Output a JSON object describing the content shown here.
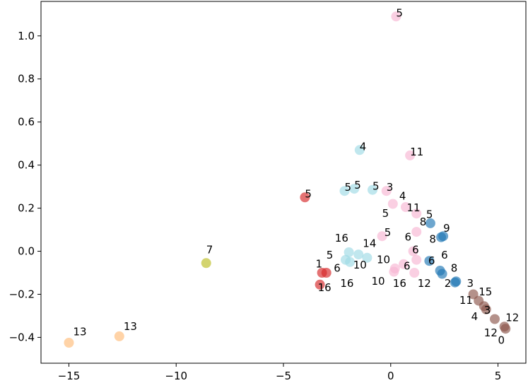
{
  "chart_data": {
    "type": "scatter",
    "title": "",
    "xlabel": "",
    "ylabel": "",
    "xlim": [
      -16.3,
      6.3
    ],
    "ylim": [
      -0.52,
      1.16
    ],
    "x_ticks": [
      -15,
      -10,
      -5,
      0,
      5
    ],
    "x_tick_labels": [
      "−15",
      "−10",
      "−5",
      "0",
      "5"
    ],
    "y_ticks": [
      -0.4,
      -0.2,
      0.0,
      0.2,
      0.4,
      0.6,
      0.8,
      1.0
    ],
    "y_tick_labels": [
      "−0.4",
      "−0.2",
      "0.0",
      "0.2",
      "0.4",
      "0.6",
      "0.8",
      "1.0"
    ],
    "grid": false,
    "legend": false,
    "points": [
      {
        "x": 0.25,
        "y": 1.09,
        "label": "5",
        "color": "#f7b6d2"
      },
      {
        "x": 0.9,
        "y": 0.445,
        "label": "11",
        "color": "#f7b6d2"
      },
      {
        "x": -0.2,
        "y": 0.28,
        "label": "3",
        "color": "#f7b6d2"
      },
      {
        "x": 0.1,
        "y": 0.22,
        "label": "4",
        "color": "#f7b6d2"
      },
      {
        "x": 0.7,
        "y": 0.205,
        "label": "11",
        "color": "#f7b6d2"
      },
      {
        "x": 1.2,
        "y": 0.175,
        "label": "5",
        "color": "#f7b6d2"
      },
      {
        "x": -0.4,
        "y": 0.07,
        "label": "5",
        "color": "#f7b6d2"
      },
      {
        "x": 1.2,
        "y": 0.09,
        "label": "6",
        "color": "#f7b6d2"
      },
      {
        "x": 1.05,
        "y": 0.0,
        "label": "6",
        "color": "#f7b6d2"
      },
      {
        "x": 1.2,
        "y": -0.04,
        "label": "6",
        "color": "#f7b6d2"
      },
      {
        "x": 0.6,
        "y": -0.06,
        "label": "6",
        "color": "#f7b6d2"
      },
      {
        "x": 0.2,
        "y": -0.08,
        "label": "10",
        "color": "#f7b6d2"
      },
      {
        "x": 0.15,
        "y": -0.095,
        "label": "10",
        "color": "#f7b6d2"
      },
      {
        "x": 1.1,
        "y": -0.1,
        "label": "16",
        "color": "#f7b6d2"
      },
      {
        "x": -1.45,
        "y": 0.47,
        "label": "4",
        "color": "#9edae5"
      },
      {
        "x": -2.15,
        "y": 0.28,
        "label": "5",
        "color": "#9edae5"
      },
      {
        "x": -1.7,
        "y": 0.29,
        "label": "5",
        "color": "#9edae5"
      },
      {
        "x": -0.85,
        "y": 0.285,
        "label": "5",
        "color": "#9edae5"
      },
      {
        "x": -1.95,
        "y": -0.005,
        "label": "16",
        "color": "#9edae5"
      },
      {
        "x": -1.5,
        "y": -0.015,
        "label": "14",
        "color": "#9edae5"
      },
      {
        "x": -1.1,
        "y": -0.03,
        "label": "14",
        "color": "#9edae5"
      },
      {
        "x": -2.1,
        "y": -0.04,
        "label": "16",
        "color": "#9edae5"
      },
      {
        "x": -1.9,
        "y": -0.05,
        "label": "10",
        "color": "#9edae5"
      },
      {
        "x": -4.0,
        "y": 0.25,
        "label": "5",
        "color": "#d62728"
      },
      {
        "x": -3.0,
        "y": -0.1,
        "label": "5",
        "color": "#d62728"
      },
      {
        "x": -3.2,
        "y": -0.1,
        "label": "1",
        "color": "#d62728"
      },
      {
        "x": -3.3,
        "y": -0.155,
        "label": "16",
        "color": "#d62728"
      },
      {
        "x": 1.85,
        "y": 0.13,
        "label": "8",
        "color": "#1f77b4"
      },
      {
        "x": 2.45,
        "y": 0.07,
        "label": "9",
        "color": "#1f77b4"
      },
      {
        "x": 2.35,
        "y": 0.065,
        "label": "8",
        "color": "#1f77b4"
      },
      {
        "x": 1.8,
        "y": -0.045,
        "label": "6",
        "color": "#1f77b4"
      },
      {
        "x": 2.3,
        "y": -0.09,
        "label": "8",
        "color": "#1f77b4"
      },
      {
        "x": 2.4,
        "y": -0.105,
        "label": "2",
        "color": "#1f77b4"
      },
      {
        "x": 3.05,
        "y": -0.14,
        "label": "3",
        "color": "#1f77b4"
      },
      {
        "x": 3.0,
        "y": -0.145,
        "label": "2",
        "color": "#1f77b4"
      },
      {
        "x": -8.6,
        "y": -0.055,
        "label": "7",
        "color": "#bcbd22"
      },
      {
        "x": -15.0,
        "y": -0.425,
        "label": "13",
        "color": "#ffbb78"
      },
      {
        "x": -12.65,
        "y": -0.395,
        "label": "13",
        "color": "#ffbb78"
      },
      {
        "x": 3.85,
        "y": -0.2,
        "label": "15",
        "color": "#8c564b"
      },
      {
        "x": 4.1,
        "y": -0.23,
        "label": "11",
        "color": "#8c564b"
      },
      {
        "x": 4.35,
        "y": -0.255,
        "label": "4",
        "color": "#8c564b"
      },
      {
        "x": 4.45,
        "y": -0.27,
        "label": "3",
        "color": "#8c564b"
      },
      {
        "x": 4.85,
        "y": -0.315,
        "label": "12",
        "color": "#8c564b"
      },
      {
        "x": 5.3,
        "y": -0.35,
        "label": "12",
        "color": "#8c564b"
      },
      {
        "x": 5.35,
        "y": -0.36,
        "label": "0",
        "color": "#8c564b"
      }
    ],
    "text_annotations": [
      {
        "x": 0.25,
        "y": 1.09,
        "text": "5"
      },
      {
        "x": -1.45,
        "y": 0.47,
        "text": "4"
      },
      {
        "x": 0.9,
        "y": 0.445,
        "text": "11"
      },
      {
        "x": -2.15,
        "y": 0.28,
        "text": "5"
      },
      {
        "x": -1.7,
        "y": 0.29,
        "text": "5"
      },
      {
        "x": -0.85,
        "y": 0.285,
        "text": "5"
      },
      {
        "x": -0.2,
        "y": 0.28,
        "text": "3"
      },
      {
        "x": -4.0,
        "y": 0.25,
        "text": "5"
      },
      {
        "x": 0.4,
        "y": 0.24,
        "text": "4"
      },
      {
        "x": 0.75,
        "y": 0.185,
        "text": "11"
      },
      {
        "x": -0.4,
        "y": 0.16,
        "text": "5"
      },
      {
        "x": 1.65,
        "y": 0.155,
        "text": "5"
      },
      {
        "x": 1.35,
        "y": 0.12,
        "text": "8"
      },
      {
        "x": 2.45,
        "y": 0.09,
        "text": "9"
      },
      {
        "x": -0.3,
        "y": 0.07,
        "text": "5"
      },
      {
        "x": 0.65,
        "y": 0.05,
        "text": "6"
      },
      {
        "x": 1.8,
        "y": 0.04,
        "text": "8"
      },
      {
        "x": -2.6,
        "y": 0.045,
        "text": "16"
      },
      {
        "x": -1.3,
        "y": 0.02,
        "text": "14"
      },
      {
        "x": 1.0,
        "y": -0.01,
        "text": "6"
      },
      {
        "x": 2.35,
        "y": -0.035,
        "text": "6"
      },
      {
        "x": -3.0,
        "y": -0.035,
        "text": "5"
      },
      {
        "x": 1.75,
        "y": -0.06,
        "text": "6"
      },
      {
        "x": -0.65,
        "y": -0.055,
        "text": "10"
      },
      {
        "x": -1.75,
        "y": -0.08,
        "text": "10"
      },
      {
        "x": -3.5,
        "y": -0.075,
        "text": "1"
      },
      {
        "x": 0.6,
        "y": -0.085,
        "text": "6"
      },
      {
        "x": 2.8,
        "y": -0.095,
        "text": "8"
      },
      {
        "x": -2.65,
        "y": -0.095,
        "text": "6"
      },
      {
        "x": -2.35,
        "y": -0.165,
        "text": "16"
      },
      {
        "x": -0.9,
        "y": -0.155,
        "text": "10"
      },
      {
        "x": 1.25,
        "y": -0.165,
        "text": "12"
      },
      {
        "x": 0.1,
        "y": -0.165,
        "text": "16"
      },
      {
        "x": 2.5,
        "y": -0.165,
        "text": "2"
      },
      {
        "x": 3.55,
        "y": -0.165,
        "text": "3"
      },
      {
        "x": -3.4,
        "y": -0.185,
        "text": "16"
      },
      {
        "x": 4.1,
        "y": -0.205,
        "text": "15"
      },
      {
        "x": 3.2,
        "y": -0.245,
        "text": "11"
      },
      {
        "x": 4.35,
        "y": -0.29,
        "text": "3"
      },
      {
        "x": 3.75,
        "y": -0.32,
        "text": "4"
      },
      {
        "x": 5.35,
        "y": -0.325,
        "text": "12"
      },
      {
        "x": -14.8,
        "y": -0.39,
        "text": "13"
      },
      {
        "x": -12.45,
        "y": -0.365,
        "text": "13"
      },
      {
        "x": 4.35,
        "y": -0.395,
        "text": "12"
      },
      {
        "x": 5.0,
        "y": -0.43,
        "text": "0"
      },
      {
        "x": -8.6,
        "y": -0.01,
        "text": "7"
      }
    ]
  }
}
